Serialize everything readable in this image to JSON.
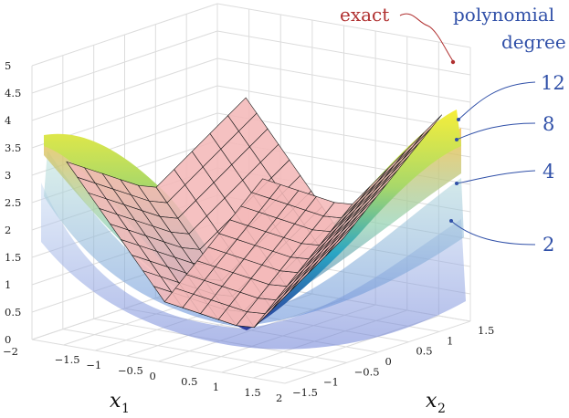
{
  "chart_data": {
    "type": "surface",
    "title": "",
    "xlabel": {
      "base": "x",
      "sub": "1"
    },
    "ylabel": {
      "base": "x",
      "sub": "2"
    },
    "zlabel": "",
    "xlim": [
      -2,
      2
    ],
    "ylim": [
      -1.5,
      1.5
    ],
    "zlim": [
      0,
      5
    ],
    "x_ticks": [
      "−1.5",
      "−1",
      "−0.5",
      "0",
      "0.5",
      "1",
      "1.5",
      "2"
    ],
    "x_min_label": "−2",
    "y_ticks": [
      "−1.5",
      "−1",
      "−0.5",
      "0",
      "0.5",
      "1",
      "1.5"
    ],
    "z_ticks": [
      "0",
      "0.5",
      "1",
      "1.5",
      "2",
      "2.5",
      "3",
      "3.5",
      "4",
      "4.5",
      "5"
    ],
    "grid": true,
    "exact": {
      "label": "exact",
      "color": "#f4b8b8",
      "edge_color": "#1a1a1a",
      "label_color": "#b03030"
    },
    "approximations_title_line1": "polynomial",
    "approximations_title_line2": "degree",
    "approximations": [
      {
        "degree": "12",
        "color": "#f0e040"
      },
      {
        "degree": "8",
        "color": "#f5c860"
      },
      {
        "degree": "4",
        "color": "#a8d8c8"
      },
      {
        "degree": "2",
        "color": "#a8c8e8"
      }
    ],
    "annotation_color": "#3050a8"
  }
}
